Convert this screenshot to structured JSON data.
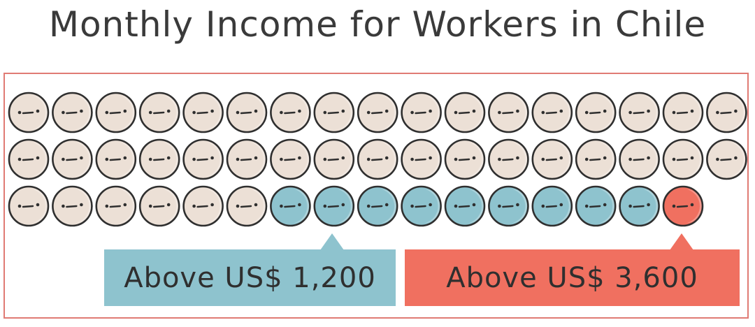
{
  "title": "Monthly Income for Workers in Chile",
  "chart_data": {
    "type": "pictograph",
    "icon": "face-icon",
    "rows": 3,
    "columns": 17,
    "total_icons": 50,
    "groups": [
      {
        "label": "",
        "count": 40,
        "color": "#ece0d6"
      },
      {
        "label": "Above US$ 1,200",
        "count": 9,
        "color": "#8ec3ce"
      },
      {
        "label": "Above US$ 3,600",
        "count": 1,
        "color": "#f07060"
      }
    ]
  },
  "colors": {
    "frame": "#e07b74",
    "outline": "#2f2f2f",
    "blue": "#8ec3ce",
    "red": "#f07060",
    "beige": "#ece0d6"
  }
}
